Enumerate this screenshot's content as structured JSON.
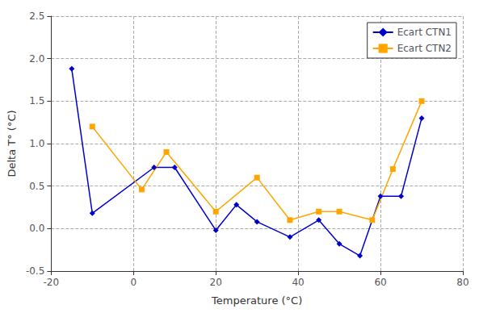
{
  "chart_data": {
    "type": "line",
    "xlabel": "Temperature (°C)",
    "ylabel": "Delta T° (°C)",
    "series": [
      {
        "name": "Ecart CTN1",
        "color": "#0000cc",
        "marker": "diamond",
        "x": [
          -15,
          -10,
          5,
          10,
          20,
          25,
          30,
          38,
          45,
          50,
          55,
          60,
          65,
          70
        ],
        "values": [
          1.88,
          0.18,
          0.72,
          0.72,
          -0.02,
          0.28,
          0.08,
          -0.1,
          0.1,
          -0.18,
          -0.32,
          0.38,
          0.38,
          1.3
        ]
      },
      {
        "name": "Ecart CTN2",
        "color": "#ffa500",
        "marker": "square",
        "x": [
          -10,
          2,
          8,
          20,
          30,
          38,
          45,
          50,
          58,
          63,
          70
        ],
        "values": [
          1.2,
          0.46,
          0.9,
          0.2,
          0.6,
          0.1,
          0.2,
          0.2,
          0.1,
          0.7,
          1.5
        ]
      }
    ],
    "xlim": [
      -20,
      80
    ],
    "ylim": [
      -0.5,
      2.5
    ],
    "xticks": [
      -20,
      0,
      20,
      40,
      60,
      80
    ],
    "yticks": [
      -0.5,
      {
        "value": 0,
        "label": "0.0"
      },
      0.5,
      {
        "value": 1,
        "label": "1.0"
      },
      1.5,
      {
        "value": 2,
        "label": "2.0"
      },
      2.5
    ],
    "grid": true,
    "legend": "upper right"
  }
}
